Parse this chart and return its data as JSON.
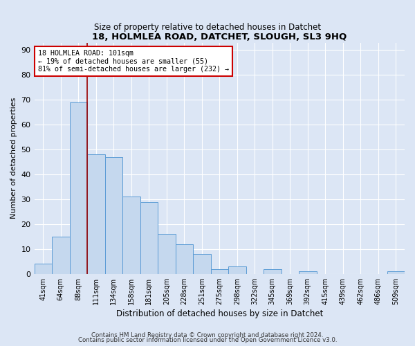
{
  "title": "18, HOLMLEA ROAD, DATCHET, SLOUGH, SL3 9HQ",
  "subtitle": "Size of property relative to detached houses in Datchet",
  "xlabel": "Distribution of detached houses by size in Datchet",
  "ylabel": "Number of detached properties",
  "categories": [
    "41sqm",
    "64sqm",
    "88sqm",
    "111sqm",
    "134sqm",
    "158sqm",
    "181sqm",
    "205sqm",
    "228sqm",
    "251sqm",
    "275sqm",
    "298sqm",
    "322sqm",
    "345sqm",
    "369sqm",
    "392sqm",
    "415sqm",
    "439sqm",
    "462sqm",
    "486sqm",
    "509sqm"
  ],
  "values": [
    4,
    15,
    69,
    48,
    47,
    31,
    29,
    16,
    12,
    8,
    2,
    3,
    0,
    2,
    0,
    1,
    0,
    0,
    0,
    0,
    1
  ],
  "bar_color": "#c5d8ee",
  "bar_edge_color": "#5b9bd5",
  "vline_index": 2,
  "vline_color": "#990000",
  "annotation_text": "18 HOLMLEA ROAD: 101sqm\n← 19% of detached houses are smaller (55)\n81% of semi-detached houses are larger (232) →",
  "annotation_box_facecolor": "#ffffff",
  "annotation_box_edgecolor": "#cc0000",
  "ylim": [
    0,
    93
  ],
  "background_color": "#dce6f5",
  "plot_bg_color": "#dce6f5",
  "footer_line1": "Contains HM Land Registry data © Crown copyright and database right 2024.",
  "footer_line2": "Contains public sector information licensed under the Open Government Licence v3.0."
}
